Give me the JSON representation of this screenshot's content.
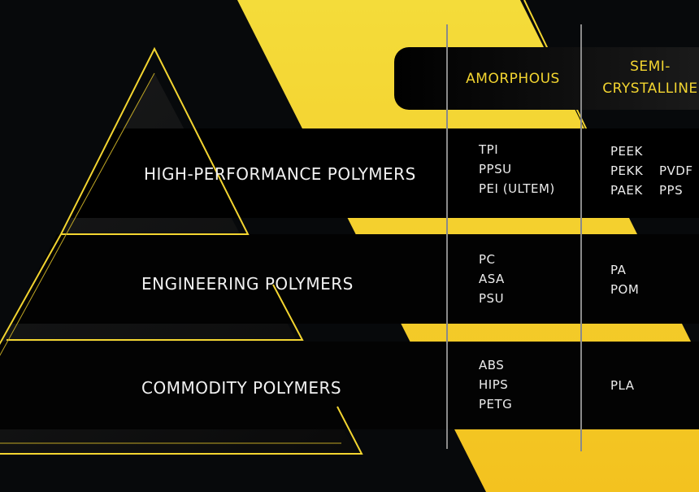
{
  "colors": {
    "accent": "#f3d530",
    "background": "#07090b",
    "band": "#000000",
    "divider": "#8a8a8a"
  },
  "columns": {
    "amorphous": "AMORPHOUS",
    "semi_line1": "SEMI-",
    "semi_line2": "CRYSTALLINE"
  },
  "tiers": [
    {
      "label": "HIGH-PERFORMANCE POLYMERS",
      "amorphous": [
        "TPI",
        "PPSU",
        "PEI (ULTEM)"
      ],
      "semi_col1": [
        "PEEK",
        "PEKK",
        "PAEK"
      ],
      "semi_col2": [
        "PVDF",
        "PPS"
      ]
    },
    {
      "label": "ENGINEERING POLYMERS",
      "amorphous": [
        "PC",
        "ASA",
        "PSU"
      ],
      "semi_col1": [
        "PA",
        "POM"
      ],
      "semi_col2": []
    },
    {
      "label": "COMMODITY POLYMERS",
      "amorphous": [
        "ABS",
        "HIPS",
        "PETG"
      ],
      "semi_col1": [
        "PLA"
      ],
      "semi_col2": []
    }
  ]
}
